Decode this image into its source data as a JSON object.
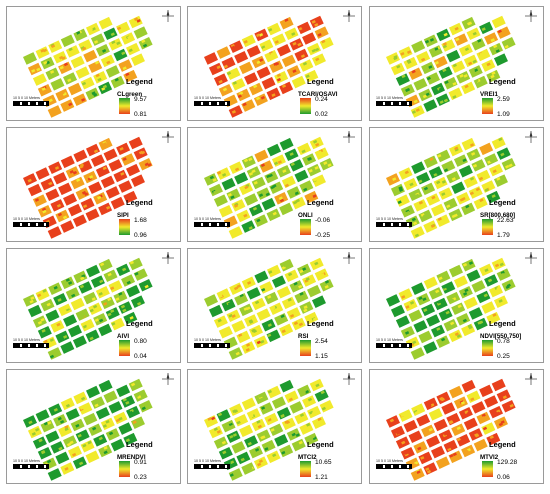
{
  "panels": [
    {
      "legend_title": "Legend",
      "index_name": "CLgreen",
      "max": "9.57",
      "min": "0.81",
      "scheme": "ryg",
      "bias": 0.55,
      "compass": "north-arrow-icon"
    },
    {
      "legend_title": "Legend",
      "index_name": "TCARI/OSAVI",
      "max": "0.24",
      "min": "0.02",
      "scheme": "gyr",
      "bias": 0.3,
      "compass": "north-arrow-icon"
    },
    {
      "legend_title": "Legend",
      "index_name": "VREI1",
      "max": "2.59",
      "min": "1.09",
      "scheme": "ryg",
      "bias": 0.6,
      "compass": "north-arrow-icon"
    },
    {
      "legend_title": "Legend",
      "index_name": "SIPI",
      "max": "1.68",
      "min": "0.96",
      "scheme": "gyr",
      "bias": 0.08,
      "compass": "north-arrow-icon"
    },
    {
      "legend_title": "Legend",
      "index_name": "ONLI",
      "max": "-0.06",
      "min": "-0.25",
      "scheme": "ryg",
      "bias": 0.62,
      "compass": "north-arrow-icon"
    },
    {
      "legend_title": "Legend",
      "index_name": "SR[800,680]",
      "max": "22.63",
      "min": "1.79",
      "scheme": "ryg",
      "bias": 0.62,
      "compass": "north-arrow-icon"
    },
    {
      "legend_title": "Legend",
      "index_name": "AIVI",
      "max": "0.80",
      "min": "0.04",
      "scheme": "ryg",
      "bias": 0.75,
      "compass": "north-arrow-icon"
    },
    {
      "legend_title": "Legend",
      "index_name": "RSI",
      "max": "2.54",
      "min": "1.15",
      "scheme": "ryg",
      "bias": 0.68,
      "compass": "north-arrow-icon"
    },
    {
      "legend_title": "Legend",
      "index_name": "NDVI[550,750]",
      "max": "0.78",
      "min": "0.25",
      "scheme": "ryg",
      "bias": 0.72,
      "compass": "north-arrow-icon"
    },
    {
      "legend_title": "Legend",
      "index_name": "MRENDVI",
      "max": "0.91",
      "min": "0.23",
      "scheme": "ryg",
      "bias": 0.75,
      "compass": "north-arrow-icon"
    },
    {
      "legend_title": "Legend",
      "index_name": "MTCI2",
      "max": "10.65",
      "min": "1.21",
      "scheme": "ryg",
      "bias": 0.62,
      "compass": "north-arrow-icon"
    },
    {
      "legend_title": "Legend",
      "index_name": "MTVI2",
      "max": "129.28",
      "min": "0.06",
      "scheme": "ryg",
      "bias": 0.22,
      "compass": "north-arrow-icon"
    }
  ],
  "scale_bar": {
    "ticks": "10  5   0        10 Meters"
  },
  "colors": {
    "red": "#e8401c",
    "orange": "#f3a21f",
    "yellow": "#f1ea2c",
    "light_green": "#9ccc2f",
    "green": "#1e9a2e"
  }
}
